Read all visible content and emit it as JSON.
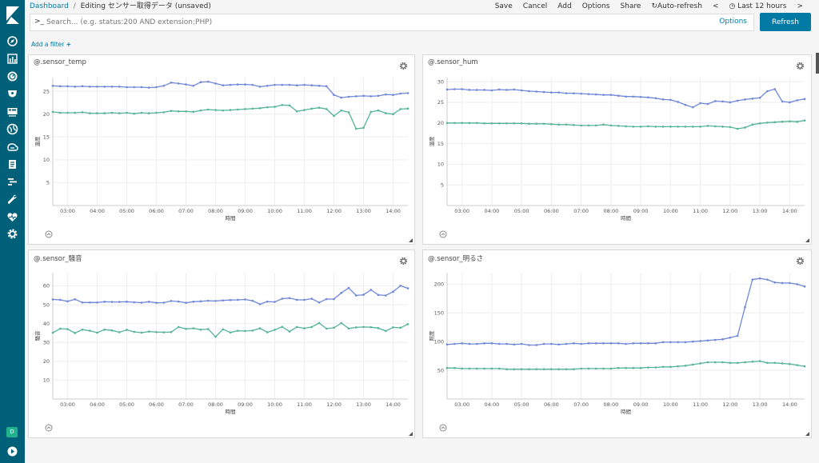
{
  "breadcrumb": {
    "root": "Dashboard",
    "separator": "/",
    "current": "Editing センサー取得データ (unsaved)"
  },
  "menu": {
    "save": "Save",
    "cancel": "Cancel",
    "add": "Add",
    "options": "Options",
    "share": "Share",
    "auto_refresh": "Auto-refresh",
    "time_range": "Last 12 hours",
    "time_prev": "<",
    "time_next": ">"
  },
  "search": {
    "prompt": ">_",
    "placeholder": "Search... (e.g. status:200 AND extension:PHP)",
    "options_label": "Options",
    "refresh_label": "Refresh"
  },
  "add_filter": "Add a filter",
  "user_initial": "D",
  "icons": {
    "sidebar": [
      "compass-icon",
      "bar-chart-icon",
      "dashboard-icon",
      "timelion-icon",
      "canvas-icon",
      "map-icon",
      "infra-icon",
      "logs-icon",
      "apm-icon",
      "devtools-icon",
      "heartbeat-icon",
      "gear-icon"
    ],
    "bottom": "collapse-icon"
  },
  "colors": {
    "series_a": "#6f87d8",
    "series_b": "#54b399",
    "sidebar": "#00607a",
    "accent": "#0079a5"
  },
  "chart_data": [
    {
      "type": "line",
      "title": "@.sensor_temp",
      "xlabel": "時間",
      "ylabel": "温度",
      "ylim": [
        0,
        28
      ],
      "yticks": [
        5,
        10,
        15,
        20,
        25
      ],
      "x": [
        "02:30",
        "02:45",
        "03:00",
        "03:15",
        "03:30",
        "03:45",
        "04:00",
        "04:15",
        "04:30",
        "04:45",
        "05:00",
        "05:15",
        "05:30",
        "05:45",
        "06:00",
        "06:15",
        "06:30",
        "06:45",
        "07:00",
        "07:15",
        "07:30",
        "07:45",
        "08:00",
        "08:15",
        "08:30",
        "08:45",
        "09:00",
        "09:15",
        "09:30",
        "09:45",
        "10:00",
        "10:15",
        "10:30",
        "10:45",
        "11:00",
        "11:15",
        "11:30",
        "11:45",
        "12:00",
        "12:15",
        "12:30",
        "12:45",
        "13:00",
        "13:15",
        "13:30",
        "13:45",
        "14:00",
        "14:15",
        "14:30"
      ],
      "series": [
        {
          "values": [
            26.2,
            26.1,
            26.1,
            26.0,
            26.1,
            26.0,
            26.0,
            26.0,
            26.0,
            26.0,
            25.9,
            25.9,
            25.9,
            25.8,
            25.9,
            26.2,
            26.9,
            26.7,
            26.5,
            26.2,
            27.0,
            27.1,
            26.7,
            26.3,
            26.4,
            26.5,
            26.5,
            26.4,
            26.0,
            26.2,
            26.4,
            26.4,
            26.4,
            26.3,
            26.4,
            26.3,
            26.2,
            26.1,
            24.2,
            23.6,
            23.8,
            23.9,
            24.0,
            23.9,
            24.0,
            24.3,
            24.2,
            24.5,
            24.6
          ]
        },
        {
          "values": [
            20.5,
            20.3,
            20.3,
            20.3,
            20.4,
            20.2,
            20.2,
            20.2,
            20.3,
            20.2,
            20.3,
            20.1,
            20.3,
            20.2,
            20.3,
            20.4,
            20.7,
            20.6,
            20.6,
            20.5,
            20.8,
            21.0,
            20.9,
            20.8,
            20.9,
            21.0,
            21.1,
            21.2,
            21.3,
            21.5,
            21.6,
            22.0,
            21.9,
            20.6,
            20.9,
            21.2,
            21.4,
            21.1,
            19.6,
            20.8,
            20.4,
            16.8,
            17.0,
            20.5,
            20.8,
            20.2,
            20.0,
            21.1,
            21.2
          ]
        }
      ],
      "xticks": [
        "03:00",
        "04:00",
        "05:00",
        "06:00",
        "07:00",
        "08:00",
        "09:00",
        "10:00",
        "11:00",
        "12:00",
        "13:00",
        "14:00"
      ]
    },
    {
      "type": "line",
      "title": "@.sensor_hum",
      "xlabel": "時間",
      "ylabel": "湿度",
      "ylim": [
        0,
        31
      ],
      "yticks": [
        5,
        10,
        15,
        20,
        25,
        30
      ],
      "x": [
        "02:30",
        "02:45",
        "03:00",
        "03:15",
        "03:30",
        "03:45",
        "04:00",
        "04:15",
        "04:30",
        "04:45",
        "05:00",
        "05:15",
        "05:30",
        "05:45",
        "06:00",
        "06:15",
        "06:30",
        "06:45",
        "07:00",
        "07:15",
        "07:30",
        "07:45",
        "08:00",
        "08:15",
        "08:30",
        "08:45",
        "09:00",
        "09:15",
        "09:30",
        "09:45",
        "10:00",
        "10:15",
        "10:30",
        "10:45",
        "11:00",
        "11:15",
        "11:30",
        "11:45",
        "12:00",
        "12:15",
        "12:30",
        "12:45",
        "13:00",
        "13:15",
        "13:30",
        "13:45",
        "14:00",
        "14:15",
        "14:30"
      ],
      "series": [
        {
          "values": [
            28.1,
            28.2,
            28.2,
            28.0,
            28.0,
            28.0,
            27.9,
            28.1,
            28.0,
            28.1,
            27.9,
            27.7,
            27.6,
            27.5,
            27.4,
            27.4,
            27.2,
            27.2,
            27.1,
            27.0,
            26.9,
            26.8,
            26.8,
            26.6,
            26.4,
            26.4,
            26.3,
            26.2,
            26.0,
            25.7,
            25.6,
            25.1,
            24.4,
            23.8,
            24.8,
            24.6,
            25.3,
            25.2,
            25.0,
            25.4,
            25.7,
            25.9,
            26.1,
            27.7,
            28.2,
            25.2,
            25.0,
            25.5,
            25.8
          ]
        },
        {
          "values": [
            20.0,
            20.0,
            20.0,
            20.0,
            20.0,
            19.9,
            19.9,
            19.9,
            19.9,
            19.9,
            19.9,
            19.8,
            19.8,
            19.8,
            19.7,
            19.6,
            19.6,
            19.5,
            19.4,
            19.4,
            19.4,
            19.6,
            19.4,
            19.3,
            19.2,
            19.1,
            19.1,
            19.2,
            19.1,
            19.1,
            19.1,
            19.1,
            19.1,
            19.1,
            19.1,
            19.3,
            19.2,
            19.1,
            19.0,
            18.6,
            18.9,
            19.6,
            19.9,
            20.1,
            20.2,
            20.3,
            20.4,
            20.3,
            20.6
          ]
        }
      ],
      "xticks": [
        "03:00",
        "04:00",
        "05:00",
        "06:00",
        "07:00",
        "08:00",
        "09:00",
        "10:00",
        "11:00",
        "12:00",
        "13:00",
        "14:00"
      ]
    },
    {
      "type": "line",
      "title": "@.sensor_騒音",
      "xlabel": "時間",
      "ylabel": "騒音",
      "ylim": [
        0,
        67
      ],
      "yticks": [
        10,
        20,
        30,
        40,
        50,
        60
      ],
      "x": [
        "02:30",
        "02:45",
        "03:00",
        "03:15",
        "03:30",
        "03:45",
        "04:00",
        "04:15",
        "04:30",
        "04:45",
        "05:00",
        "05:15",
        "05:30",
        "05:45",
        "06:00",
        "06:15",
        "06:30",
        "06:45",
        "07:00",
        "07:15",
        "07:30",
        "07:45",
        "08:00",
        "08:15",
        "08:30",
        "08:45",
        "09:00",
        "09:15",
        "09:30",
        "09:45",
        "10:00",
        "10:15",
        "10:30",
        "10:45",
        "11:00",
        "11:15",
        "11:30",
        "11:45",
        "12:00",
        "12:15",
        "12:30",
        "12:45",
        "13:00",
        "13:15",
        "13:30",
        "13:45",
        "14:00",
        "14:15",
        "14:30"
      ],
      "series": [
        {
          "values": [
            52.8,
            52.6,
            51.8,
            52.9,
            51.2,
            51.2,
            51.2,
            51.6,
            51.5,
            51.5,
            51.6,
            51.3,
            51.1,
            51.6,
            51.0,
            51.1,
            52.0,
            51.7,
            51.0,
            51.6,
            51.8,
            52.1,
            52.0,
            52.3,
            52.5,
            52.6,
            52.8,
            52.1,
            50.3,
            51.7,
            51.5,
            53.2,
            53.5,
            52.6,
            52.6,
            53.2,
            51.2,
            53.0,
            53.0,
            56.3,
            58.9,
            54.9,
            55.3,
            57.9,
            55.2,
            54.9,
            56.9,
            60.1,
            58.7
          ]
        },
        {
          "values": [
            35.2,
            37.3,
            37.1,
            35.0,
            36.8,
            36.2,
            35.2,
            36.8,
            36.4,
            35.4,
            36.7,
            35.6,
            35.2,
            35.8,
            35.5,
            35.4,
            35.5,
            38.2,
            37.2,
            37.5,
            36.8,
            37.1,
            33.0,
            37.0,
            35.3,
            36.2,
            36.1,
            36.3,
            37.5,
            35.4,
            36.7,
            38.3,
            35.8,
            38.2,
            37.5,
            38.2,
            40.3,
            37.3,
            37.8,
            40.3,
            37.4,
            38.0,
            38.2,
            38.1,
            37.6,
            36.1,
            38.0,
            37.8,
            39.7
          ]
        }
      ],
      "xticks": [
        "03:00",
        "04:00",
        "05:00",
        "06:00",
        "07:00",
        "08:00",
        "09:00",
        "10:00",
        "11:00",
        "12:00",
        "13:00",
        "14:00"
      ]
    },
    {
      "type": "line",
      "title": "@.sensor_明るさ",
      "xlabel": "時間",
      "ylabel": "照度",
      "ylim": [
        0,
        220
      ],
      "yticks": [
        50,
        100,
        150,
        200
      ],
      "x": [
        "02:30",
        "02:45",
        "03:00",
        "03:15",
        "03:30",
        "03:45",
        "04:00",
        "04:15",
        "04:30",
        "04:45",
        "05:00",
        "05:15",
        "05:30",
        "05:45",
        "06:00",
        "06:15",
        "06:30",
        "06:45",
        "07:00",
        "07:15",
        "07:30",
        "07:45",
        "08:00",
        "08:15",
        "08:30",
        "08:45",
        "09:00",
        "09:15",
        "09:30",
        "09:45",
        "10:00",
        "10:15",
        "10:30",
        "10:45",
        "11:00",
        "11:15",
        "11:30",
        "11:45",
        "12:00",
        "12:15",
        "12:30",
        "12:45",
        "13:00",
        "13:15",
        "13:30",
        "13:45",
        "14:00",
        "14:15",
        "14:30"
      ],
      "series": [
        {
          "values": [
            95,
            96,
            97,
            96,
            96,
            97,
            97,
            96,
            96,
            95,
            96,
            94,
            94,
            96,
            96,
            95,
            96,
            97,
            96,
            97,
            97,
            97,
            97,
            97,
            96,
            97,
            97,
            97,
            97,
            99,
            99,
            99,
            99,
            100,
            101,
            102,
            103,
            104,
            107,
            110,
            160,
            208,
            210,
            208,
            203,
            202,
            202,
            200,
            196
          ]
        },
        {
          "values": [
            54,
            54,
            53,
            53,
            53,
            53,
            53,
            53,
            52,
            52,
            52,
            52,
            52,
            52,
            52,
            52,
            52,
            52,
            53,
            53,
            53,
            53,
            53,
            54,
            54,
            54,
            54,
            55,
            55,
            56,
            56,
            57,
            58,
            60,
            62,
            64,
            64,
            64,
            63,
            63,
            64,
            65,
            66,
            63,
            63,
            62,
            61,
            59,
            57
          ]
        }
      ],
      "xticks": [
        "03:00",
        "04:00",
        "05:00",
        "06:00",
        "07:00",
        "08:00",
        "09:00",
        "10:00",
        "11:00",
        "12:00",
        "13:00",
        "14:00"
      ]
    }
  ]
}
